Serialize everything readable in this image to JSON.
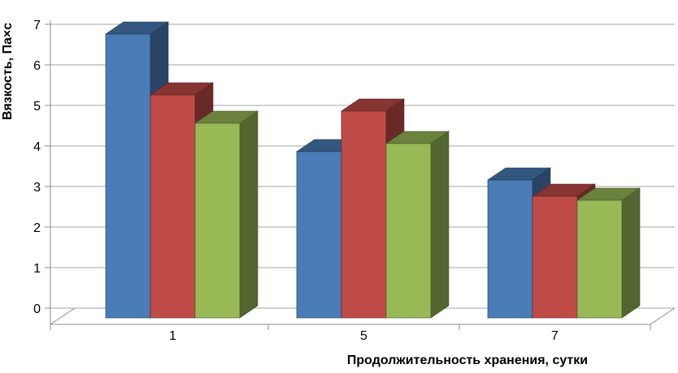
{
  "chart_data": {
    "type": "bar",
    "style": "3d-clustered-column",
    "title": "",
    "xlabel": "Продолжительность хранения, сутки",
    "ylabel": "Вязкость, Па×с",
    "categories": [
      "1",
      "5",
      "7"
    ],
    "series": [
      {
        "name": "series-1-blue",
        "color": "#4A7CB7",
        "values": [
          7.0,
          4.1,
          3.4
        ]
      },
      {
        "name": "series-2-red",
        "color": "#BF4B47",
        "values": [
          5.5,
          5.1,
          3.0
        ]
      },
      {
        "name": "series-3-green",
        "color": "#99B957",
        "values": [
          4.8,
          4.3,
          2.9
        ]
      }
    ],
    "ylim": [
      0,
      7
    ],
    "ytick_step": 1,
    "yticks": [
      "0",
      "1",
      "2",
      "3",
      "4",
      "5",
      "6",
      "7"
    ],
    "grid": true,
    "legend": "none",
    "colors": {
      "gridline": "#A6A6A6",
      "axis": "#8C8C8C",
      "text": "#000000",
      "background": "#FFFFFF"
    }
  }
}
